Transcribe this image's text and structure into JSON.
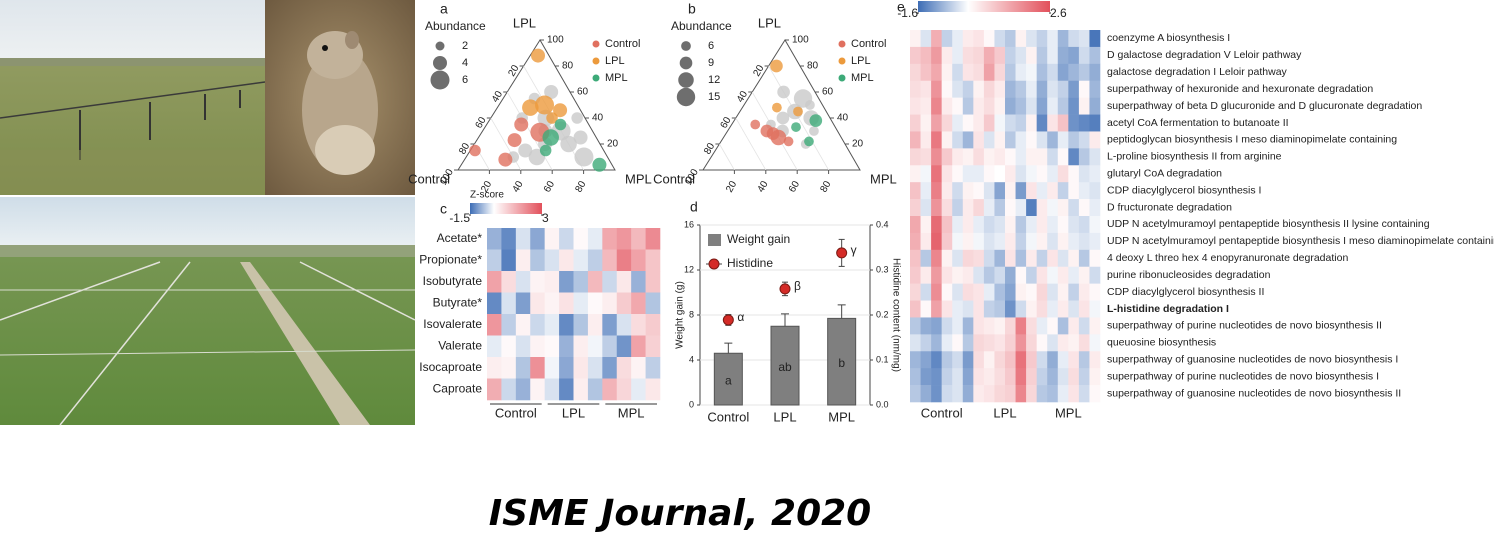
{
  "chart_data": [
    {
      "type": "ternary",
      "panel": "a",
      "top_label": "LPL",
      "left_label": "Control",
      "right_label": "MPL",
      "left_ticks": [
        20,
        40,
        60,
        80,
        100
      ],
      "right_ticks": [
        20,
        40,
        60,
        80,
        100
      ],
      "bottom_ticks": [
        20,
        40,
        60,
        80
      ],
      "size_legend_title": "Abundance",
      "size_legend": [
        2,
        4,
        6
      ],
      "series": [
        {
          "color": "#c9c9c9",
          "control": [
            30,
            25,
            40,
            20,
            10,
            15,
            35,
            60,
            45,
            25,
            12,
            5,
            50,
            20
          ],
          "lpl": [
            30,
            40,
            40,
            20,
            25,
            10,
            20,
            10,
            10,
            55,
            60,
            40,
            15,
            30
          ],
          "mpl": [
            40,
            35,
            20,
            60,
            65,
            75,
            45,
            30,
            45,
            20,
            28,
            55,
            35,
            50
          ],
          "size": [
            4,
            5,
            3,
            5,
            4,
            6,
            4,
            3,
            5,
            3,
            4,
            3,
            4,
            6
          ]
        },
        {
          "name": "Control",
          "color": "#e0705f",
          "control": [
            34,
            53,
            82,
            66,
            43
          ],
          "lpl": [
            29,
            23,
            15,
            8,
            35
          ],
          "mpl": [
            37,
            24,
            3,
            26,
            22
          ],
          "size": [
            6,
            4,
            3,
            4,
            4
          ]
        },
        {
          "name": "LPL",
          "color": "#ec9a3c",
          "control": [
            7,
            21,
            31,
            13,
            21
          ],
          "lpl": [
            88,
            50,
            48,
            46,
            40
          ],
          "mpl": [
            5,
            29,
            21,
            41,
            39
          ],
          "size": [
            4,
            6,
            5,
            4,
            3
          ]
        },
        {
          "name": "MPL",
          "color": "#3daa78",
          "control": [
            29,
            18,
            8,
            37
          ],
          "lpl": [
            25,
            35,
            4,
            15
          ],
          "mpl": [
            46,
            47,
            88,
            48
          ],
          "size": [
            5,
            3,
            4,
            3
          ]
        }
      ]
    },
    {
      "type": "ternary",
      "panel": "b",
      "top_label": "LPL",
      "left_label": "Control",
      "right_label": "MPL",
      "left_ticks": [
        20,
        40,
        60,
        80,
        100
      ],
      "right_ticks": [
        20,
        40,
        60,
        80,
        100
      ],
      "bottom_ticks": [
        20,
        40,
        60,
        80
      ],
      "size_legend_title": "Abundance",
      "size_legend": [
        6,
        9,
        12,
        15
      ],
      "series": [
        {
          "color": "#c9c9c9",
          "control": [
            30,
            20,
            15,
            10,
            35,
            25,
            12,
            40,
            20,
            8
          ],
          "lpl": [
            40,
            45,
            30,
            55,
            30,
            20,
            40,
            35,
            60,
            50
          ],
          "mpl": [
            30,
            35,
            55,
            35,
            35,
            55,
            48,
            25,
            20,
            42
          ],
          "size": [
            9,
            12,
            6,
            15,
            9,
            6,
            12,
            6,
            9,
            6
          ]
        },
        {
          "name": "Control",
          "color": "#e0705f",
          "control": [
            45,
            40,
            50,
            42,
            35
          ],
          "lpl": [
            30,
            25,
            35,
            28,
            22
          ],
          "mpl": [
            25,
            35,
            15,
            30,
            43
          ],
          "size": [
            9,
            12,
            6,
            9,
            6
          ]
        },
        {
          "name": "LPL",
          "color": "#ec9a3c",
          "control": [
            15,
            30,
            18
          ],
          "lpl": [
            80,
            48,
            45
          ],
          "mpl": [
            5,
            22,
            37
          ],
          "size": [
            9,
            6,
            6
          ]
        },
        {
          "name": "MPL",
          "color": "#3daa78",
          "control": [
            22,
            25,
            10
          ],
          "lpl": [
            22,
            33,
            38
          ],
          "mpl": [
            56,
            42,
            52
          ],
          "size": [
            6,
            6,
            9
          ]
        }
      ]
    },
    {
      "type": "heatmap",
      "panel": "c",
      "colorbar_title": "Z-score",
      "clim": [
        -1.5,
        3
      ],
      "cticks": [
        -1.5,
        3
      ],
      "colormap": [
        "#3d6db5",
        "#ffffff",
        "#e2505b"
      ],
      "rows": [
        "Acetate*",
        "Propionate*",
        "Isobutyrate",
        "Butyrate*",
        "Isovalerate",
        "Valerate",
        "Isocaproate",
        "Caproate"
      ],
      "groups": [
        "Control",
        "LPL",
        "MPL"
      ],
      "values": [
        [
          -0.8,
          -1.2,
          -0.3,
          -0.9,
          0.2,
          -0.4,
          0.1,
          -0.2,
          1.5,
          1.8,
          1.2,
          2.0
        ],
        [
          -0.5,
          -1.3,
          0.3,
          -0.6,
          -0.3,
          0.4,
          -0.2,
          -0.5,
          1.2,
          2.2,
          1.6,
          1.0
        ],
        [
          1.6,
          0.6,
          -0.3,
          0.2,
          0.3,
          -1.0,
          -0.6,
          1.2,
          -0.4,
          0.4,
          -0.8,
          1.0
        ],
        [
          -1.2,
          -0.3,
          -1.0,
          0.4,
          0.2,
          0.5,
          -0.2,
          0.1,
          0.3,
          0.9,
          1.5,
          -0.6
        ],
        [
          1.8,
          -0.5,
          0.2,
          -0.4,
          -0.2,
          -1.2,
          -0.6,
          0.3,
          -1.0,
          -0.3,
          0.6,
          0.9
        ],
        [
          -0.2,
          0.1,
          -0.3,
          0.2,
          0.1,
          -0.8,
          0.3,
          -0.1,
          -0.5,
          -1.1,
          1.6,
          0.8
        ],
        [
          0.3,
          0.2,
          -0.6,
          1.9,
          -0.1,
          -0.9,
          0.4,
          -0.3,
          -1.0,
          0.6,
          0.2,
          -0.5
        ],
        [
          1.4,
          -0.4,
          -0.8,
          0.2,
          -0.3,
          -1.2,
          0.3,
          -0.6,
          1.3,
          0.7,
          -0.2,
          0.4
        ]
      ]
    },
    {
      "type": "bar_line",
      "panel": "d",
      "categories": [
        "Control",
        "LPL",
        "MPL"
      ],
      "ylabel": "Weight gain (g)",
      "y2label": "Histidine content (nm/mg)",
      "ylim": [
        0,
        16
      ],
      "yticks": [
        0,
        4,
        8,
        12,
        16
      ],
      "y2lim": [
        0,
        0.4
      ],
      "y2ticks": [
        {
          "value": 0,
          "label": "0.0"
        },
        0.1,
        0.2,
        0.3,
        0.4
      ],
      "grid": true,
      "series": [
        {
          "name": "Weight gain",
          "color": "#7f7f7f",
          "values": [
            4.6,
            7.0,
            7.7
          ],
          "errors": [
            0.9,
            1.1,
            1.2
          ],
          "letters": [
            "a",
            "ab",
            "b"
          ]
        },
        {
          "name": "Histidine",
          "axis": "y2",
          "color": "#d42b27",
          "values": [
            0.189,
            0.258,
            0.338
          ],
          "errors": [
            0.012,
            0.015,
            0.03
          ],
          "letters": [
            "α",
            "β",
            "γ"
          ]
        }
      ]
    },
    {
      "type": "heatmap",
      "panel": "e",
      "clim": [
        -1.6,
        2.6
      ],
      "cticks": [
        -1.6,
        2.6
      ],
      "colormap": [
        "#3d6db5",
        "#ffffff",
        "#e2505b"
      ],
      "rows": [
        "coenzyme A biosynthesis I",
        "D galactose degradation V Leloir pathway",
        "galactose degradation I Leloir pathway",
        "superpathway of hexuronide and hexuronate degradation",
        "superpathway of beta D glucuronide and D glucuronate degradation",
        "acetyl CoA fermentation to butanoate II",
        "peptidoglycan biosynthesis I meso diaminopimelate containing",
        "L-proline biosynthesis II from arginine",
        "glutaryl CoA degradation",
        "CDP diacylglycerol biosynthesis I",
        "D fructuronate degradation",
        "UDP N acetylmuramoyl pentapeptide biosynthesis II lysine containing",
        "UDP N acetylmuramoyl pentapeptide biosynthesis I meso diaminopimelate containing",
        "4 deoxy L threo hex 4 enopyranuronate degradation",
        "purine ribonucleosides degradation",
        "CDP diacylglycerol biosynthesis II",
        "L-histidine degradation I",
        "superpathway of purine nucleotides de novo biosynthesis II",
        "queuosine biosynthesis",
        "superpathway of guanosine nucleotides de novo biosynthesis I",
        "superpathway of purine nucleotides de novo biosynthesis I",
        "superpathway of guanosine nucleotides de novo biosynthesis II"
      ],
      "groups": [
        "Control",
        "LPL",
        "MPL"
      ],
      "values": [
        [
          0.2,
          -0.3,
          1.2,
          -0.5,
          -0.2,
          0.3,
          0.4,
          0.1,
          -0.4,
          -0.6,
          0.2,
          -0.3,
          -0.5,
          -0.2,
          -0.8,
          -0.4,
          -0.3,
          -1.5
        ],
        [
          0.8,
          1.0,
          1.5,
          0.3,
          -0.2,
          0.5,
          0.6,
          1.2,
          0.8,
          -0.5,
          -0.3,
          0.2,
          -0.6,
          -0.2,
          -0.9,
          -1.0,
          -0.4,
          -0.7
        ],
        [
          0.6,
          0.9,
          1.3,
          0.2,
          -0.4,
          0.4,
          0.5,
          1.4,
          0.6,
          -0.6,
          -0.2,
          -0.1,
          -0.7,
          -0.4,
          -1.0,
          -0.8,
          -0.6,
          -0.9
        ],
        [
          0.5,
          0.4,
          1.6,
          0.1,
          -0.3,
          -0.5,
          0.2,
          0.6,
          0.3,
          -0.8,
          -0.6,
          -0.2,
          -0.9,
          -0.3,
          -0.5,
          -1.1,
          0.1,
          -0.8
        ],
        [
          0.4,
          0.3,
          1.8,
          0.3,
          0.1,
          -0.6,
          0.3,
          0.5,
          0.2,
          -0.9,
          -0.7,
          -0.3,
          -1.0,
          -0.2,
          -0.6,
          -1.2,
          0.2,
          -0.9
        ],
        [
          0.7,
          0.2,
          1.4,
          0.6,
          -0.2,
          0.1,
          0.3,
          0.8,
          -0.1,
          -0.4,
          -0.5,
          0.2,
          -1.3,
          0.4,
          0.9,
          -1.2,
          -1.3,
          -1.4
        ],
        [
          1.1,
          0.3,
          2.0,
          0.2,
          -0.4,
          -0.8,
          0.4,
          -0.3,
          0.2,
          -0.6,
          -0.2,
          0.1,
          -0.3,
          -0.8,
          -0.2,
          -0.6,
          -0.4,
          0.3
        ],
        [
          0.6,
          0.5,
          1.7,
          0.8,
          0.3,
          0.2,
          0.5,
          0.2,
          0.3,
          0.1,
          -0.2,
          0.2,
          0.2,
          -0.4,
          0.1,
          -1.3,
          -0.6,
          -0.3
        ],
        [
          0.2,
          -0.1,
          2.1,
          0.4,
          0.1,
          -0.2,
          -0.2,
          0.1,
          0.0,
          0.3,
          -0.3,
          -0.1,
          0.1,
          -0.2,
          0.5,
          0.1,
          -0.3,
          -0.2
        ],
        [
          0.9,
          -0.2,
          1.9,
          0.3,
          -0.4,
          0.2,
          0.1,
          -0.3,
          -1.0,
          0.2,
          -1.1,
          0.4,
          -0.2,
          0.3,
          -0.5,
          0.1,
          -0.2,
          -0.3
        ],
        [
          0.7,
          -0.3,
          1.6,
          0.5,
          -0.5,
          0.3,
          0.6,
          -0.2,
          -0.6,
          0.1,
          -0.2,
          -1.4,
          0.3,
          -0.1,
          0.2,
          -0.4,
          0.1,
          -0.2
        ],
        [
          1.3,
          0.2,
          2.2,
          0.9,
          -0.2,
          0.3,
          -0.2,
          -0.4,
          -0.3,
          0.2,
          -0.6,
          -0.2,
          0.3,
          -0.2,
          0.1,
          -0.3,
          -0.4,
          -0.1
        ],
        [
          1.2,
          0.3,
          2.3,
          0.8,
          -0.1,
          0.2,
          -0.1,
          -0.3,
          -0.2,
          0.3,
          -0.5,
          -0.1,
          0.2,
          -0.3,
          0.2,
          -0.2,
          -0.3,
          -0.2
        ],
        [
          0.9,
          -0.6,
          1.8,
          0.2,
          -0.3,
          0.6,
          0.5,
          -0.4,
          -0.8,
          0.4,
          -0.7,
          0.3,
          -0.5,
          0.4,
          -0.3,
          0.2,
          -0.6,
          0.1
        ],
        [
          0.8,
          0.3,
          1.5,
          0.4,
          0.2,
          0.3,
          -0.3,
          -0.6,
          -0.4,
          -0.9,
          0.1,
          -0.5,
          0.4,
          -0.1,
          0.3,
          -0.2,
          0.2,
          -0.4
        ],
        [
          0.6,
          -0.4,
          1.7,
          0.1,
          -0.3,
          0.5,
          0.4,
          -0.2,
          -0.7,
          -1.0,
          0.2,
          0.1,
          0.6,
          -0.3,
          0.2,
          -0.5,
          0.3,
          0.1
        ],
        [
          0.9,
          0.1,
          1.4,
          0.4,
          -0.2,
          -0.3,
          0.4,
          -0.5,
          -0.6,
          -1.2,
          -0.4,
          0.2,
          0.5,
          -0.2,
          0.3,
          -0.3,
          0.4,
          -0.1
        ],
        [
          -0.6,
          -0.9,
          -1.0,
          -0.4,
          -0.2,
          -0.8,
          0.4,
          0.3,
          0.2,
          0.6,
          1.9,
          0.5,
          -0.2,
          0.1,
          -0.7,
          0.3,
          -0.4,
          0.2
        ],
        [
          -0.3,
          -0.5,
          -0.8,
          -0.2,
          0.1,
          -0.6,
          0.6,
          0.5,
          0.4,
          0.7,
          1.6,
          0.6,
          0.1,
          -0.3,
          0.3,
          0.2,
          0.5,
          -0.1
        ],
        [
          -0.8,
          -1.0,
          -1.3,
          -0.6,
          -0.4,
          -1.1,
          0.5,
          0.2,
          0.6,
          0.9,
          2.1,
          0.8,
          -0.4,
          -0.9,
          -0.2,
          0.4,
          -0.6,
          0.3
        ],
        [
          -0.7,
          -1.1,
          -1.2,
          -0.5,
          -0.3,
          -1.0,
          0.4,
          0.3,
          0.5,
          0.8,
          2.0,
          0.7,
          -0.5,
          -0.8,
          -0.3,
          0.5,
          -0.5,
          0.2
        ],
        [
          -0.6,
          -0.9,
          -1.2,
          -0.4,
          -0.3,
          -0.9,
          0.3,
          0.4,
          0.6,
          0.7,
          1.8,
          0.6,
          -0.6,
          -0.7,
          -0.2,
          0.4,
          -0.4,
          0.1
        ]
      ]
    }
  ],
  "caption": "ISME Journal, 2020"
}
